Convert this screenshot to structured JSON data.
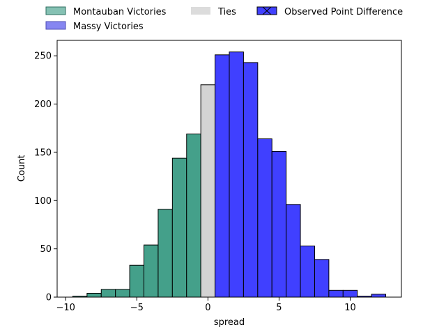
{
  "chart_data": {
    "type": "bar",
    "xlabel": "spread",
    "ylabel": "Count",
    "xlim": [
      -10.6,
      13.6
    ],
    "ylim": [
      0,
      266
    ],
    "xticks": [
      -10,
      -5,
      0,
      5,
      10
    ],
    "xtick_labels": [
      "−10",
      "−5",
      "0",
      "5",
      "10"
    ],
    "yticks": [
      0,
      50,
      100,
      150,
      200,
      250
    ],
    "ytick_labels": [
      "0",
      "50",
      "100",
      "150",
      "200",
      "250"
    ],
    "grid": false,
    "legend_placement": "top, outside axes",
    "bin_width": 1,
    "series": [
      {
        "name": "Montauban Victories",
        "color": "#44a08a",
        "bins": [
          {
            "x": -9,
            "count": 1
          },
          {
            "x": -8,
            "count": 4
          },
          {
            "x": -7,
            "count": 8
          },
          {
            "x": -6,
            "count": 8
          },
          {
            "x": -5,
            "count": 33
          },
          {
            "x": -4,
            "count": 54
          },
          {
            "x": -3,
            "count": 91
          },
          {
            "x": -2,
            "count": 144
          },
          {
            "x": -1,
            "count": 169
          }
        ]
      },
      {
        "name": "Ties",
        "color": "#d3d3d3",
        "bins": [
          {
            "x": 0,
            "count": 220
          }
        ]
      },
      {
        "name": "Observed Point Difference",
        "color": "#4040ff",
        "bins": [
          {
            "x": 1,
            "count": 251
          },
          {
            "x": 2,
            "count": 254
          },
          {
            "x": 3,
            "count": 243
          },
          {
            "x": 4,
            "count": 164
          },
          {
            "x": 5,
            "count": 151
          },
          {
            "x": 6,
            "count": 96
          },
          {
            "x": 7,
            "count": 53
          },
          {
            "x": 8,
            "count": 39
          },
          {
            "x": 9,
            "count": 7
          },
          {
            "x": 10,
            "count": 7
          },
          {
            "x": 11,
            "count": 1
          },
          {
            "x": 12,
            "count": 3
          }
        ]
      }
    ],
    "legend": [
      {
        "label": "Montauban Victories",
        "color": "#44a08a"
      },
      {
        "label": "Massy Victories",
        "color": "#8080f0"
      },
      {
        "label": "Ties",
        "color": "#dcdcdc"
      },
      {
        "label": "Observed Point Difference",
        "color": "#4040ff",
        "marker": "x"
      }
    ]
  }
}
